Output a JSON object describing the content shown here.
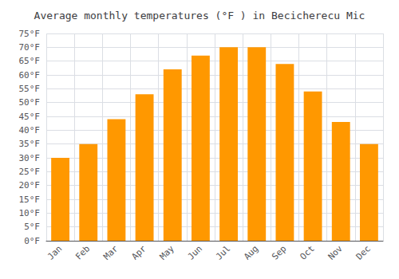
{
  "chart_data": {
    "type": "bar",
    "title": "Average monthly temperatures (°F ) in Becicherecu Mic",
    "categories": [
      "Jan",
      "Feb",
      "Mar",
      "Apr",
      "May",
      "Jun",
      "Jul",
      "Aug",
      "Sep",
      "Oct",
      "Nov",
      "Dec"
    ],
    "values": [
      30,
      35,
      44,
      53,
      62,
      67,
      70,
      70,
      64,
      54,
      43,
      35
    ],
    "color": "#FF9800",
    "ylim": [
      0,
      75
    ],
    "yticks": [
      {
        "value": 0,
        "label": "0°F"
      },
      {
        "value": 5,
        "label": "5°F"
      },
      {
        "value": 10,
        "label": "10°F"
      },
      {
        "value": 15,
        "label": "15°F"
      },
      {
        "value": 20,
        "label": "20°F"
      },
      {
        "value": 25,
        "label": "25°F"
      },
      {
        "value": 30,
        "label": "30°F"
      },
      {
        "value": 35,
        "label": "35°F"
      },
      {
        "value": 40,
        "label": "40°F"
      },
      {
        "value": 45,
        "label": "45°F"
      },
      {
        "value": 50,
        "label": "50°F"
      },
      {
        "value": 55,
        "label": "55°F"
      },
      {
        "value": 60,
        "label": "60°F"
      },
      {
        "value": 65,
        "label": "65°F"
      },
      {
        "value": 70,
        "label": "70°F"
      },
      {
        "value": 75,
        "label": "75°F"
      }
    ],
    "grid": true
  }
}
